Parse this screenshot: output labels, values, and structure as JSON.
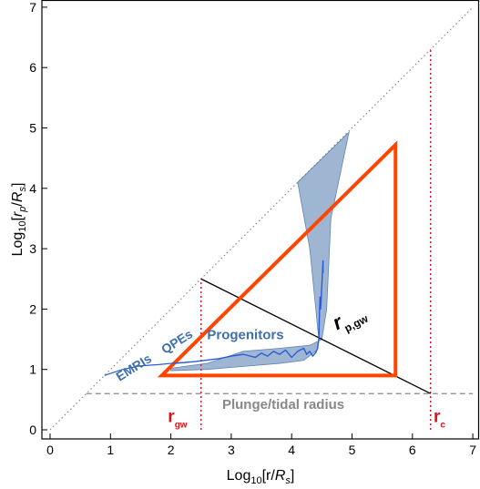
{
  "chart_data": {
    "type": "line",
    "title": "",
    "xlabel": "Log10[r/Rs]",
    "ylabel": "Log10[rp/Rs]",
    "xlim": [
      0,
      7
    ],
    "ylim": [
      0,
      7
    ],
    "xticks": [
      0,
      1,
      2,
      3,
      4,
      5,
      6,
      7
    ],
    "yticks": [
      0,
      1,
      2,
      3,
      4,
      5,
      6,
      7
    ],
    "grid": false,
    "diagonal": {
      "x": [
        0,
        7
      ],
      "y": [
        0,
        7
      ],
      "style": "dotted",
      "color": "#888888"
    },
    "plunge_line": {
      "y": 0.6,
      "x": [
        0.6,
        7
      ],
      "style": "dashed",
      "color": "#888888"
    },
    "r_gw_line": {
      "x": 2.5,
      "y": [
        0,
        2.5
      ],
      "color": "#e0101a"
    },
    "r_c_line": {
      "x": 6.3,
      "y": [
        0,
        6.3
      ],
      "color": "#e0101a"
    },
    "rp_gw_line": {
      "x": [
        2.5,
        6.3
      ],
      "y": [
        2.5,
        0.6
      ],
      "color": "#000000"
    },
    "triangle": {
      "x": [
        1.85,
        5.72,
        5.72,
        1.85
      ],
      "y": [
        0.9,
        4.72,
        0.9,
        0.9
      ],
      "color": "#ff4500"
    },
    "progenitor_region": {
      "color": "#7f9ec4",
      "upper": {
        "x": [
          2.0,
          2.6,
          3.2,
          3.8,
          4.3,
          4.5,
          4.58,
          4.65,
          4.95
        ],
        "y": [
          1.02,
          1.1,
          1.3,
          1.35,
          1.4,
          1.5,
          2.0,
          3.5,
          4.93
        ]
      },
      "lower": {
        "x": [
          4.1,
          4.3,
          4.4,
          4.45,
          4.42,
          4.2,
          3.8,
          3.2,
          2.6,
          2.0
        ],
        "y": [
          4.1,
          3.0,
          2.0,
          1.5,
          1.32,
          1.15,
          1.1,
          1.05,
          1.0,
          0.98
        ]
      }
    },
    "progenitor_track": {
      "color": "#2a5bd7",
      "x": [
        2.05,
        2.4,
        2.8,
        3.0,
        3.2,
        3.4,
        3.5,
        3.6,
        3.7,
        3.8,
        3.9,
        4.0,
        4.1,
        4.2,
        4.25,
        4.3,
        4.35,
        4.4,
        4.43,
        4.45,
        4.46,
        4.47,
        4.48,
        4.5,
        4.52,
        4.52
      ],
      "y": [
        1.1,
        1.13,
        1.18,
        1.22,
        1.25,
        1.2,
        1.27,
        1.22,
        1.3,
        1.25,
        1.32,
        1.2,
        1.3,
        1.35,
        1.25,
        1.3,
        1.22,
        1.28,
        1.35,
        1.5,
        1.9,
        2.2,
        2.0,
        2.4,
        2.8,
        2.6
      ]
    },
    "emri_qpe_curve": {
      "color": "#2a5bd7",
      "x": [
        0.9,
        1.2,
        1.5,
        1.8,
        2.0,
        2.3
      ],
      "y": [
        0.9,
        1.0,
        1.06,
        1.08,
        1.1,
        1.12
      ]
    },
    "annotations": [
      {
        "text": "EMRIs",
        "x": 1.15,
        "y": 0.8,
        "color": "#3f6fad"
      },
      {
        "text": "QPEs",
        "x": 1.9,
        "y": 1.25,
        "color": "#3f6fad"
      },
      {
        "text": "Progenitors",
        "x": 2.6,
        "y": 1.5,
        "color": "#3f6fad"
      },
      {
        "text": "r",
        "sub": "p,gw",
        "x": 4.75,
        "y": 1.65,
        "color": "#000000"
      },
      {
        "text": "Plunge/tidal radius",
        "x": 2.85,
        "y": 0.35,
        "color": "#888888"
      },
      {
        "text": "r",
        "sub": "gw",
        "x": 1.95,
        "y": 0.13,
        "color": "#e0101a"
      },
      {
        "text": "r",
        "sub": "c",
        "x": 6.35,
        "y": 0.13,
        "color": "#e0101a"
      }
    ]
  }
}
